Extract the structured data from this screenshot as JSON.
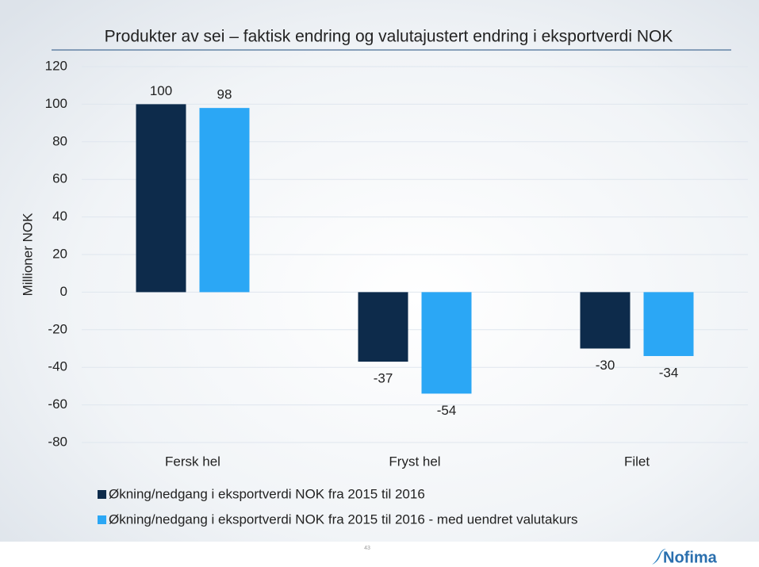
{
  "chart_data": {
    "type": "bar",
    "title": "Produkter av sei – faktisk endring og valutajustert endring i eksportverdi NOK",
    "y_label": "Millioner NOK",
    "categories": [
      "Fersk hel",
      "Fryst hel",
      "Filet"
    ],
    "series": [
      {
        "name": "Økning/nedgang i eksportverdi NOK fra 2015 til 2016",
        "color": "#0d2b4b",
        "values": [
          100,
          -37,
          -30
        ]
      },
      {
        "name": "Økning/nedgang i eksportverdi NOK fra 2015 til 2016 - med uendret valutakurs",
        "color": "#2ba7f5",
        "values": [
          98,
          -54,
          -34
        ]
      }
    ],
    "ylim": [
      -80,
      120
    ],
    "yticks": [
      -80,
      -60,
      -40,
      -20,
      0,
      20,
      40,
      60,
      80,
      100,
      120
    ],
    "grid": true
  },
  "page_number": "43",
  "logo": "Nofima"
}
